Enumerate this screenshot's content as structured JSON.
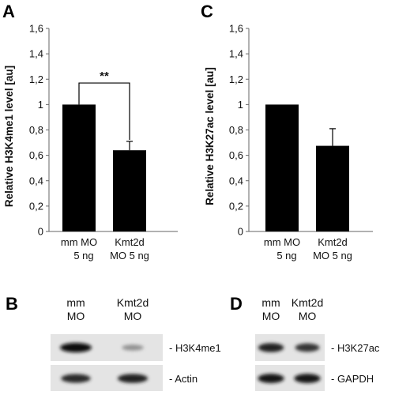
{
  "chart_data": [
    {
      "panel": "A",
      "type": "bar",
      "categories": [
        [
          "mm MO",
          "5 ng"
        ],
        [
          "Kmt2d",
          "MO 5 ng"
        ]
      ],
      "values": [
        1.0,
        0.64
      ],
      "errors": [
        0.0,
        0.07
      ],
      "ylabel": "Relative H3K4me1 level [au]",
      "ylim": [
        0,
        1.6
      ],
      "yticks": [
        "0",
        "0,2",
        "0,4",
        "0,6",
        "0,8",
        "1",
        "1,2",
        "1,4",
        "1,6"
      ],
      "significance": "**",
      "bar_color": "#000000",
      "grid": false
    },
    {
      "panel": "C",
      "type": "bar",
      "categories": [
        [
          "mm MO",
          "5 ng"
        ],
        [
          "Kmt2d",
          "MO 5 ng"
        ]
      ],
      "values": [
        1.0,
        0.675
      ],
      "errors": [
        0.0,
        0.135
      ],
      "ylabel": "Relative H3K27ac level [au]",
      "ylim": [
        0,
        1.6
      ],
      "yticks": [
        "0",
        "0,2",
        "0,4",
        "0,6",
        "0,8",
        "1",
        "1,2",
        "1,4",
        "1,6"
      ],
      "bar_color": "#000000",
      "grid": false
    }
  ],
  "blots": [
    {
      "panel": "B",
      "lanes": [
        [
          "mm",
          "MO"
        ],
        [
          "Kmt2d",
          "MO"
        ]
      ],
      "rows": [
        {
          "label": "- H3K4me1",
          "intensity": [
            1.0,
            0.3
          ]
        },
        {
          "label": "- Actin",
          "intensity": [
            0.85,
            0.9
          ]
        }
      ]
    },
    {
      "panel": "D",
      "lanes": [
        [
          "mm",
          "MO"
        ],
        [
          "Kmt2d",
          "MO"
        ]
      ],
      "rows": [
        {
          "label": "- H3K27ac",
          "intensity": [
            0.9,
            0.8
          ]
        },
        {
          "label": "- GAPDH",
          "intensity": [
            0.95,
            0.95
          ]
        }
      ]
    }
  ]
}
